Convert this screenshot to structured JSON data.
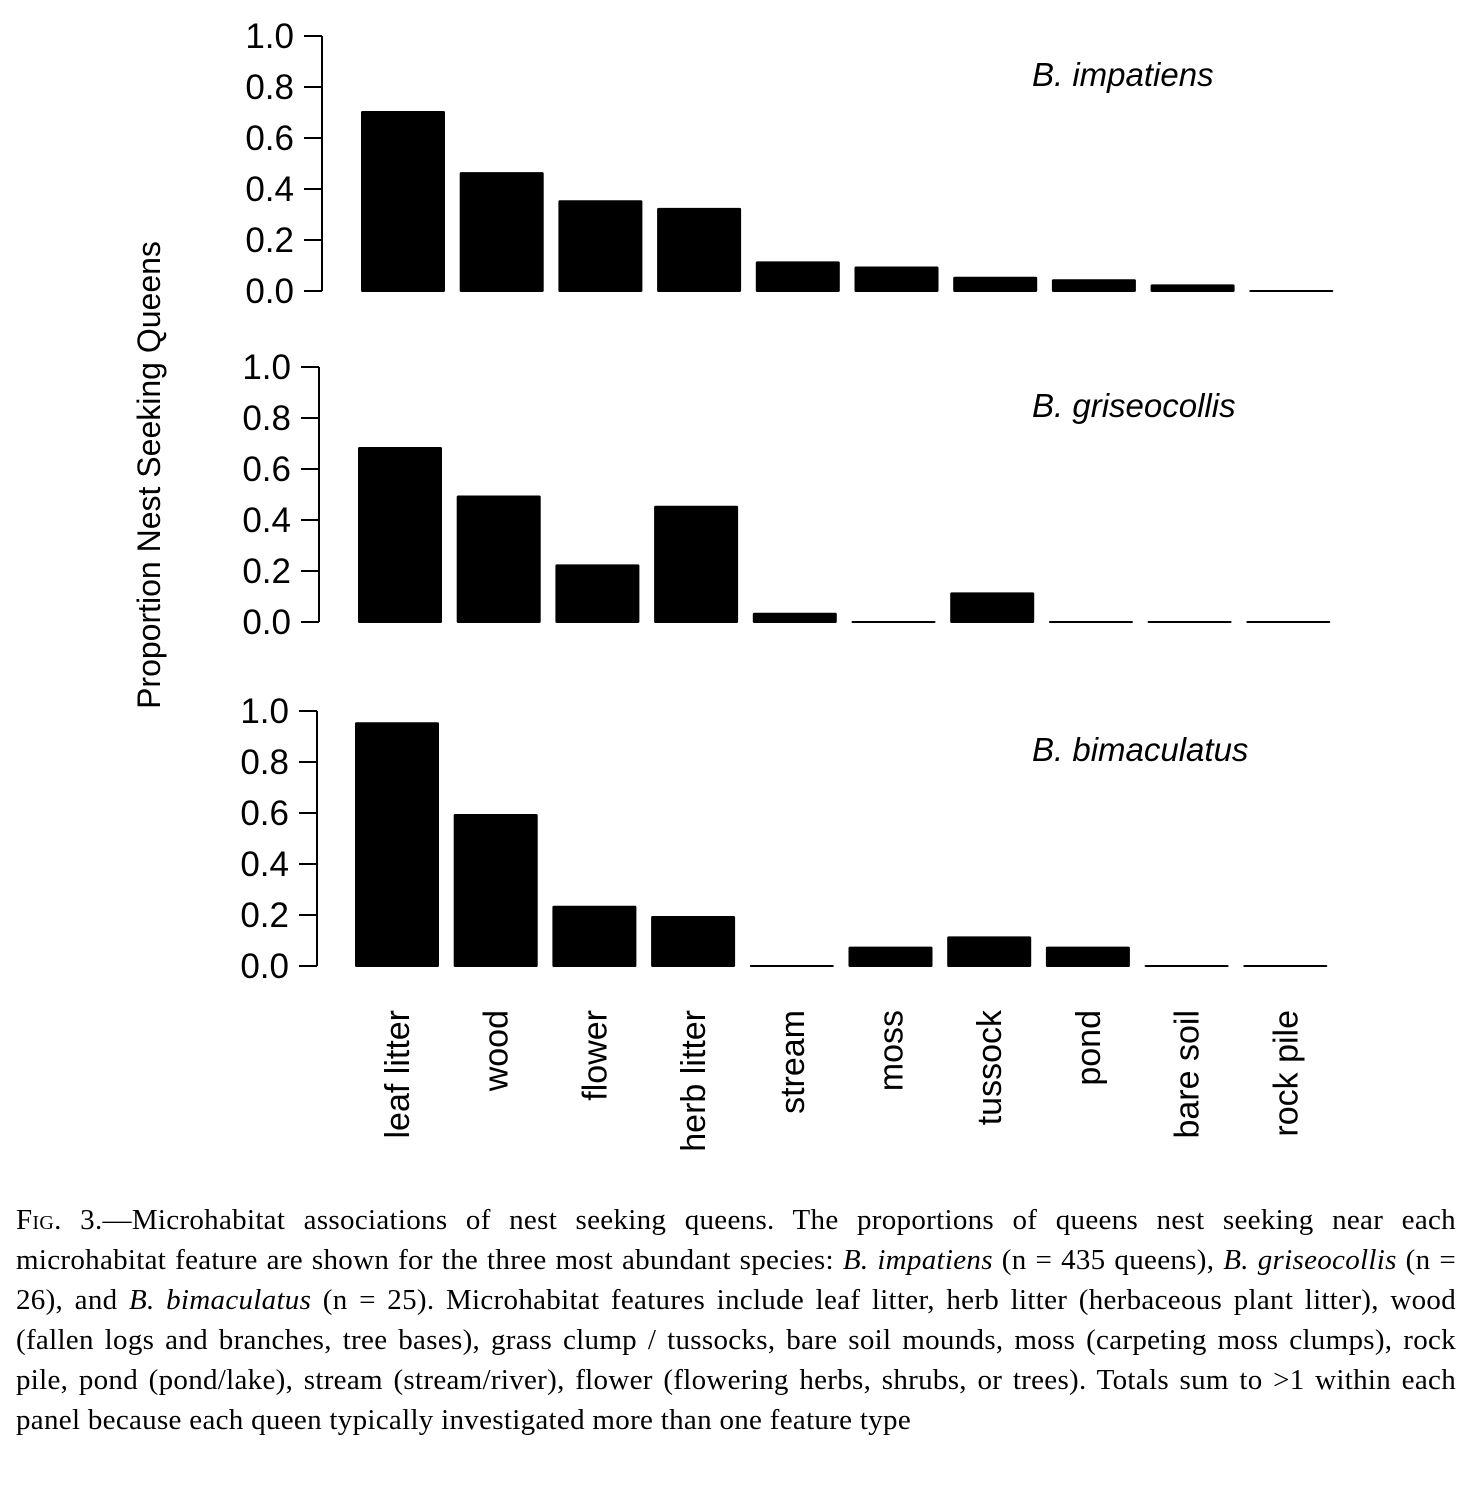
{
  "chart_data": {
    "type": "bar",
    "ylabel": "Proportion Nest Seeking Queens",
    "ylim": [
      0,
      1.0
    ],
    "yticks": [
      "0.0",
      "0.2",
      "0.4",
      "0.6",
      "0.8",
      "1.0"
    ],
    "categories": [
      "leaf litter",
      "wood",
      "flower",
      "herb litter",
      "stream",
      "moss",
      "tussock",
      "pond",
      "bare soil",
      "rock pile"
    ],
    "panels": [
      {
        "title": "B. impatiens",
        "values": [
          0.71,
          0.47,
          0.36,
          0.33,
          0.12,
          0.1,
          0.06,
          0.05,
          0.03,
          0.0
        ]
      },
      {
        "title": "B. griseocollis",
        "values": [
          0.69,
          0.5,
          0.23,
          0.46,
          0.04,
          0.0,
          0.12,
          0.0,
          0.0,
          0.0
        ]
      },
      {
        "title": "B. bimaculatus",
        "values": [
          0.96,
          0.6,
          0.24,
          0.2,
          0.0,
          0.08,
          0.12,
          0.08,
          0.0,
          0.0
        ]
      }
    ]
  },
  "caption": {
    "label": "Fig. 3.",
    "parts": [
      "—Microhabitat associations of nest seeking queens. The proportions of queens nest seeking near each microhabitat feature are shown for the three most abundant species: ",
      "B. impatiens",
      " (n = 435 queens), ",
      "B. griseocollis",
      " (n = 26), and ",
      "B. bimaculatus",
      " (n = 25). Microhabitat features include leaf litter, herb litter (herbaceous plant litter), wood (fallen logs and branches, tree bases), grass clump / tussocks, bare soil mounds, moss (carpeting moss clumps), rock pile, pond (pond/lake), stream (stream/river), flower (flowering herbs, shrubs, or trees). Totals sum to >1 within each panel because each queen typically investigated more than one feature type"
    ]
  }
}
